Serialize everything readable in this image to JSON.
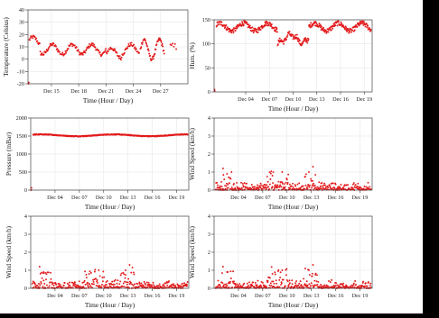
{
  "chart_data": [
    {
      "type": "scatter",
      "xlabel": "Time (Hour / Day)",
      "ylabel": "Temperature (Celsius)",
      "xlim": [
        0,
        41
      ],
      "ylim": [
        -20,
        40
      ],
      "xticks": [
        {
          "v": 6,
          "label": "Dec 15"
        },
        {
          "v": 13,
          "label": "Dec 18"
        },
        {
          "v": 20,
          "label": "Dec 21"
        },
        {
          "v": 27,
          "label": "Dec 24"
        },
        {
          "v": 34,
          "label": "Dec 27"
        }
      ],
      "yticks": [
        -20,
        -10,
        0,
        10,
        20,
        30,
        40
      ],
      "color": "#e31a1c",
      "series_kind": "temperature"
    },
    {
      "type": "scatter",
      "xlabel": "Time (Hour / Day)",
      "ylabel": "Hum. (%)",
      "xlim": [
        0,
        20
      ],
      "ylim": [
        0,
        150
      ],
      "xticks": [
        {
          "v": 4,
          "label": "Dec 04"
        },
        {
          "v": 7,
          "label": "Dec 07"
        },
        {
          "v": 10,
          "label": "Dec 10"
        },
        {
          "v": 13,
          "label": "Dec 13"
        },
        {
          "v": 16,
          "label": "Dec 16"
        },
        {
          "v": 19,
          "label": "Dec 19"
        }
      ],
      "yticks": [
        0,
        50,
        100,
        150
      ],
      "color": "#e31a1c",
      "series_kind": "humidity"
    },
    {
      "type": "scatter",
      "xlabel": "Time (Hour / Day)",
      "ylabel": "Pressure (mBar)",
      "xlim": [
        1,
        20.5
      ],
      "ylim": [
        0,
        2000
      ],
      "xticks": [
        {
          "v": 4,
          "label": "Dec 04"
        },
        {
          "v": 7,
          "label": "Dec 07"
        },
        {
          "v": 10,
          "label": "Dec 10"
        },
        {
          "v": 13,
          "label": "Dec 13"
        },
        {
          "v": 16,
          "label": "Dec 16"
        },
        {
          "v": 19,
          "label": "Dec 19"
        }
      ],
      "yticks": [
        0,
        500,
        1000,
        1500,
        2000
      ],
      "color": "#e31a1c",
      "series_kind": "pressure"
    },
    {
      "type": "scatter",
      "xlabel": "Time (Hour / Day)",
      "ylabel": "Wind Speed (km/h)",
      "xlim": [
        1,
        20.5
      ],
      "ylim": [
        0,
        4
      ],
      "xticks": [
        {
          "v": 4,
          "label": "Dec 04"
        },
        {
          "v": 7,
          "label": "Dec 07"
        },
        {
          "v": 10,
          "label": "Dec 10"
        },
        {
          "v": 13,
          "label": "Dec 13"
        },
        {
          "v": 16,
          "label": "Dec 16"
        },
        {
          "v": 19,
          "label": "Dec 19"
        }
      ],
      "yticks": [
        0,
        1,
        2,
        3,
        4
      ],
      "color": "#e31a1c",
      "series_kind": "wind"
    },
    {
      "type": "scatter",
      "xlabel": "Time (Hour / Day)",
      "ylabel": "Wind Speed (km/h)",
      "xlim": [
        1,
        20.5
      ],
      "ylim": [
        0,
        4
      ],
      "xticks": [
        {
          "v": 4,
          "label": "Dec 04"
        },
        {
          "v": 7,
          "label": "Dec 07"
        },
        {
          "v": 10,
          "label": "Dec 10"
        },
        {
          "v": 13,
          "label": "Dec 13"
        },
        {
          "v": 16,
          "label": "Dec 16"
        },
        {
          "v": 19,
          "label": "Dec 19"
        }
      ],
      "yticks": [
        0,
        1,
        2,
        3,
        4
      ],
      "color": "#e31a1c",
      "series_kind": "wind"
    },
    {
      "type": "scatter",
      "xlabel": "Time (Hour / Day)",
      "ylabel": "Wind Speed (km/h)",
      "xlim": [
        1,
        20.5
      ],
      "ylim": [
        0,
        4
      ],
      "xticks": [
        {
          "v": 4,
          "label": "Dec 04"
        },
        {
          "v": 7,
          "label": "Dec 07"
        },
        {
          "v": 10,
          "label": "Dec 10"
        },
        {
          "v": 13,
          "label": "Dec 13"
        },
        {
          "v": 16,
          "label": "Dec 16"
        },
        {
          "v": 19,
          "label": "Dec 19"
        }
      ],
      "yticks": [
        0,
        1,
        2,
        3,
        4
      ],
      "color": "#e31a1c",
      "series_kind": "wind"
    }
  ]
}
